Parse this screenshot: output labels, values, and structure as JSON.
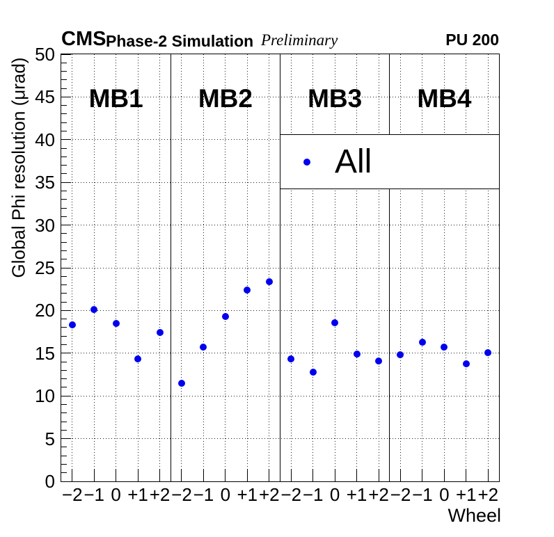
{
  "header": {
    "experiment": "CMS",
    "context": "Phase-2 Simulation",
    "status": "Preliminary",
    "pileup": "PU 200"
  },
  "chart_data": {
    "type": "scatter",
    "title": "",
    "xlabel": "Wheel",
    "ylabel": "Global Phi resolution (μrad)",
    "ylim": [
      0,
      50
    ],
    "y_tick_step": 5,
    "y_minor_tick_step": 1,
    "grid": true,
    "stations": [
      "MB1",
      "MB2",
      "MB3",
      "MB4"
    ],
    "wheels": [
      "−2",
      "−1",
      "0",
      "+1",
      "+2"
    ],
    "legend": {
      "position": "upper-right",
      "entries": [
        {
          "label": "All",
          "marker": "filled-circle",
          "color": "#0000ee"
        }
      ]
    },
    "series": [
      {
        "name": "All",
        "color": "#0000ee",
        "values_by_station": {
          "MB1": [
            18.3,
            20.1,
            18.5,
            14.3,
            17.4
          ],
          "MB2": [
            11.5,
            15.7,
            19.3,
            22.4,
            23.4
          ],
          "MB3": [
            14.3,
            12.8,
            18.6,
            14.9,
            14.1
          ],
          "MB4": [
            14.8,
            16.3,
            15.7,
            13.8,
            15.1
          ]
        }
      }
    ]
  }
}
